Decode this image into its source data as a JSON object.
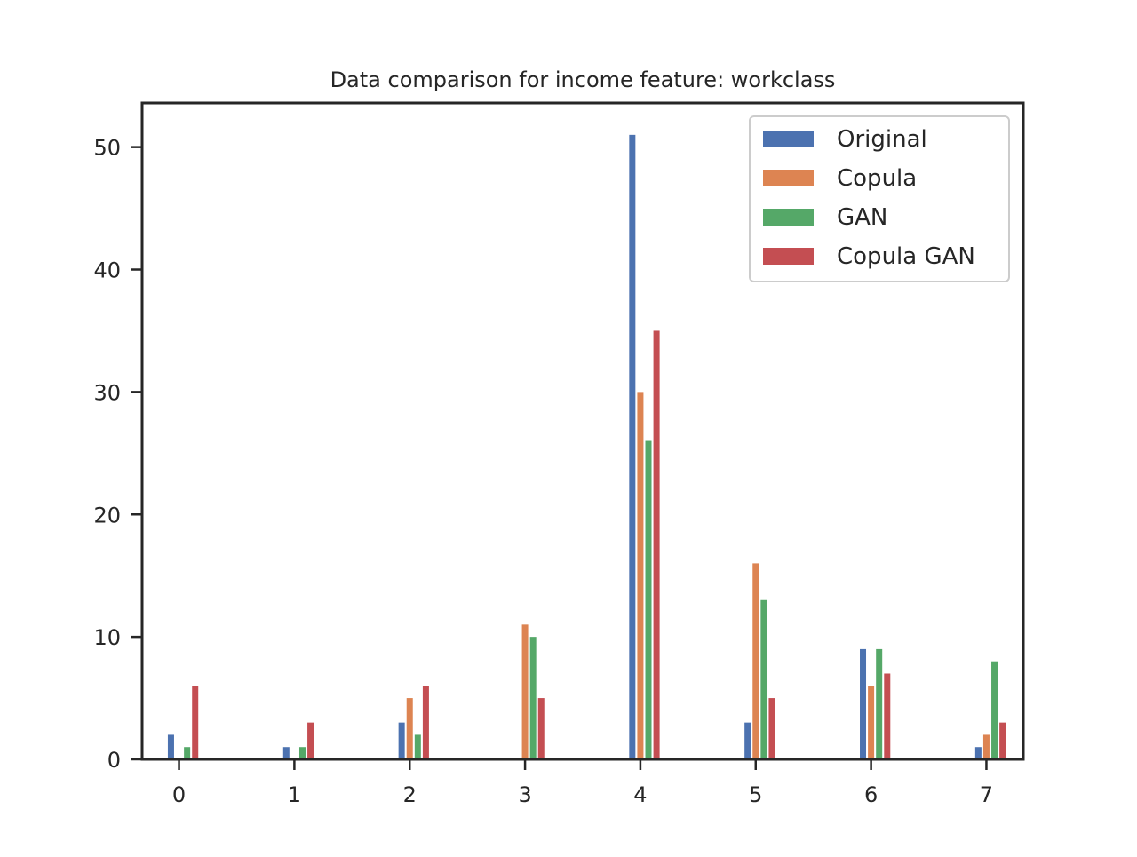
{
  "chart_data": {
    "type": "bar",
    "title": "Data comparison for income feature: workclass",
    "xlabel": "",
    "ylabel": "",
    "x": [
      0,
      1,
      2,
      3,
      4,
      5,
      6,
      7
    ],
    "xticks": [
      "0",
      "1",
      "2",
      "3",
      "4",
      "5",
      "6",
      "7"
    ],
    "yticks": [
      "0",
      "10",
      "20",
      "30",
      "40",
      "50"
    ],
    "xlim": [
      -0.32,
      7.32
    ],
    "ylim": [
      0,
      53.6
    ],
    "grid": false,
    "legend_position": "upper right",
    "series": [
      {
        "name": "Original",
        "color": "#4c72b0",
        "offset": -0.07,
        "points": [
          [
            0,
            2
          ],
          [
            1,
            1
          ],
          [
            2,
            3
          ],
          [
            4,
            51
          ],
          [
            5,
            3
          ],
          [
            6,
            9
          ],
          [
            7,
            1
          ]
        ]
      },
      {
        "name": "Copula",
        "color": "#dd8452",
        "offset": 0.0,
        "points": [
          [
            2,
            5
          ],
          [
            3,
            11
          ],
          [
            4,
            30
          ],
          [
            5,
            16
          ],
          [
            6,
            6
          ],
          [
            7,
            2
          ]
        ]
      },
      {
        "name": "GAN",
        "color": "#55a868",
        "offset": 0.07,
        "points": [
          [
            0,
            1
          ],
          [
            1,
            1
          ],
          [
            2,
            2
          ],
          [
            3,
            10
          ],
          [
            4,
            26
          ],
          [
            5,
            13
          ],
          [
            6,
            9
          ],
          [
            7,
            8
          ]
        ]
      },
      {
        "name": "Copula GAN",
        "color": "#c44e52",
        "offset": 0.14,
        "points": [
          [
            0,
            6
          ],
          [
            1,
            3
          ],
          [
            2,
            6
          ],
          [
            3,
            5
          ],
          [
            4,
            35
          ],
          [
            5,
            5
          ],
          [
            6,
            7
          ],
          [
            7,
            3
          ]
        ]
      }
    ]
  }
}
